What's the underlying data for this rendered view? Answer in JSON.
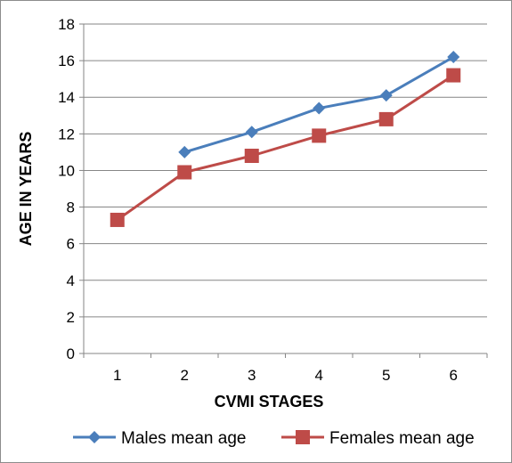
{
  "chart_data": {
    "type": "line",
    "title": "",
    "xlabel": "CVMI STAGES",
    "ylabel": "AGE IN YEARS",
    "categories": [
      "1",
      "2",
      "3",
      "4",
      "5",
      "6"
    ],
    "ylim": [
      0,
      18
    ],
    "yticks": [
      0,
      2,
      4,
      6,
      8,
      10,
      12,
      14,
      16,
      18
    ],
    "grid": "horizontal",
    "legend_position": "bottom",
    "series": [
      {
        "name": "Males mean age",
        "color": "#4a7ebb",
        "marker": "diamond",
        "values": [
          null,
          11.0,
          12.1,
          13.4,
          14.1,
          16.2
        ]
      },
      {
        "name": "Females mean age",
        "color": "#be4b48",
        "marker": "square",
        "values": [
          7.3,
          9.9,
          10.8,
          11.9,
          12.8,
          15.2
        ]
      }
    ]
  }
}
